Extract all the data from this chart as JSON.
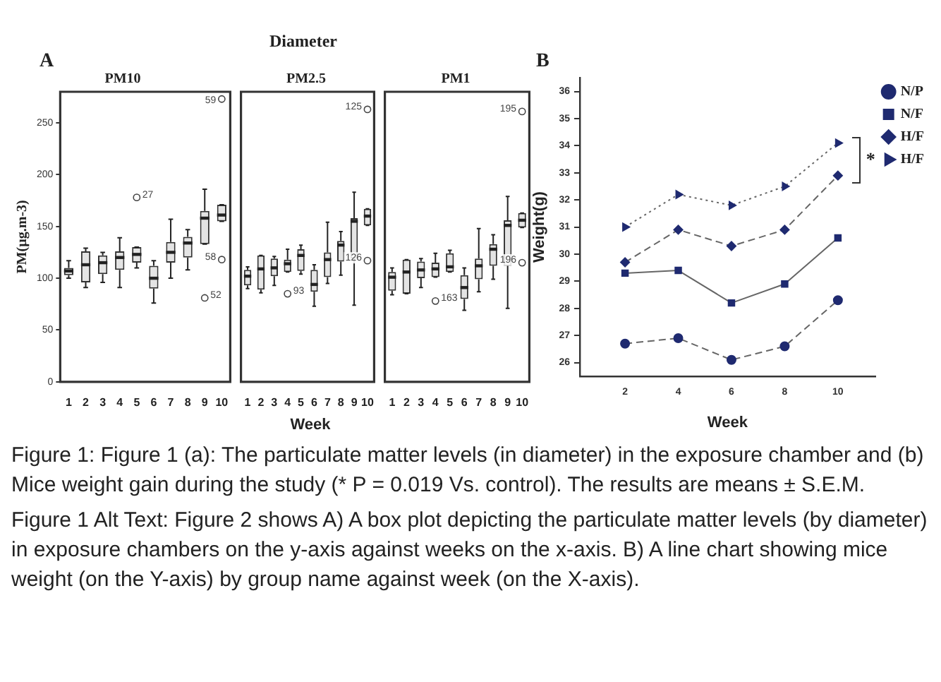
{
  "chart_data": [
    {
      "type": "box",
      "title": "PM10",
      "xlabel": "Week",
      "ylabel": "PM(µg.m-3)",
      "color": "#333333",
      "categories": [
        "1",
        "2",
        "3",
        "4",
        "5",
        "6",
        "7",
        "8",
        "9",
        "10"
      ],
      "ylim": [
        0,
        280
      ],
      "yticks": [
        0,
        50,
        100,
        150,
        200,
        250
      ],
      "boxes": [
        {
          "low": 100,
          "q1": 103,
          "median": 107,
          "q3": 110,
          "high": 117
        },
        {
          "low": 91,
          "q1": 96,
          "median": 113,
          "q3": 126,
          "high": 129
        },
        {
          "low": 96,
          "q1": 104,
          "median": 115,
          "q3": 122,
          "high": 125
        },
        {
          "low": 91,
          "q1": 108,
          "median": 120,
          "q3": 126,
          "high": 139
        },
        {
          "low": 110,
          "q1": 115,
          "median": 123,
          "q3": 130,
          "high": 130,
          "outliers": [
            178
          ]
        },
        {
          "low": 76,
          "q1": 90,
          "median": 100,
          "q3": 112,
          "high": 117
        },
        {
          "low": 100,
          "q1": 115,
          "median": 125,
          "q3": 135,
          "high": 157
        },
        {
          "low": 108,
          "q1": 120,
          "median": 134,
          "q3": 140,
          "high": 147
        },
        {
          "low": 133,
          "q1": 133,
          "median": 158,
          "q3": 165,
          "high": 186,
          "outliers": [
            81
          ]
        },
        {
          "low": 155,
          "q1": 155,
          "median": 161,
          "q3": 171,
          "high": 171,
          "outliers": [
            118,
            273
          ]
        }
      ],
      "annotations": [
        "A",
        "Diameter",
        "27",
        "52",
        "58",
        "59"
      ]
    },
    {
      "type": "box",
      "title": "PM2.5",
      "color": "#333333",
      "categories": [
        "1",
        "2",
        "3",
        "4",
        "5",
        "6",
        "7",
        "8",
        "9",
        "10"
      ],
      "ylim": [
        0,
        280
      ],
      "tick_labels": "x",
      "boxes": [
        {
          "low": 90,
          "q1": 93,
          "median": 102,
          "q3": 108,
          "high": 111
        },
        {
          "low": 86,
          "q1": 89,
          "median": 109,
          "q3": 122,
          "high": 122
        },
        {
          "low": 93,
          "q1": 102,
          "median": 110,
          "q3": 119,
          "high": 121
        },
        {
          "low": 106,
          "q1": 106,
          "median": 114,
          "q3": 118,
          "high": 128,
          "outliers": [
            85
          ]
        },
        {
          "low": 104,
          "q1": 107,
          "median": 122,
          "q3": 128,
          "high": 132
        },
        {
          "low": 73,
          "q1": 87,
          "median": 94,
          "q3": 108,
          "high": 113
        },
        {
          "low": 95,
          "q1": 101,
          "median": 118,
          "q3": 125,
          "high": 154
        },
        {
          "low": 103,
          "q1": 116,
          "median": 132,
          "q3": 136,
          "high": 145
        },
        {
          "low": 74,
          "q1": 119,
          "median": 155,
          "q3": 158,
          "high": 183
        },
        {
          "low": 151,
          "q1": 151,
          "median": 160,
          "q3": 167,
          "high": 167,
          "outliers": [
            117,
            263
          ]
        }
      ],
      "annotations": [
        "93",
        "126",
        "125"
      ]
    },
    {
      "type": "box",
      "title": "PM1",
      "color": "#333333",
      "categories": [
        "1",
        "2",
        "3",
        "4",
        "5",
        "6",
        "7",
        "8",
        "9",
        "10"
      ],
      "ylim": [
        0,
        280
      ],
      "tick_labels": "x",
      "boxes": [
        {
          "low": 84,
          "q1": 88,
          "median": 101,
          "q3": 106,
          "high": 110
        },
        {
          "low": 85,
          "q1": 85,
          "median": 106,
          "q3": 118,
          "high": 118
        },
        {
          "low": 91,
          "q1": 100,
          "median": 108,
          "q3": 116,
          "high": 119
        },
        {
          "low": 101,
          "q1": 101,
          "median": 109,
          "q3": 115,
          "high": 124,
          "outliers": [
            78
          ]
        },
        {
          "low": 106,
          "q1": 106,
          "median": 111,
          "q3": 124,
          "high": 127
        },
        {
          "low": 69,
          "q1": 80,
          "median": 91,
          "q3": 103,
          "high": 110
        },
        {
          "low": 87,
          "q1": 99,
          "median": 112,
          "q3": 119,
          "high": 148
        },
        {
          "low": 99,
          "q1": 112,
          "median": 128,
          "q3": 133,
          "high": 142
        },
        {
          "low": 71,
          "q1": 112,
          "median": 151,
          "q3": 156,
          "high": 179
        },
        {
          "low": 149,
          "q1": 149,
          "median": 156,
          "q3": 163,
          "high": 163,
          "outliers": [
            115,
            261
          ]
        }
      ],
      "annotations": [
        "163",
        "196",
        "195"
      ]
    },
    {
      "type": "line",
      "x": [
        2,
        4,
        6,
        8,
        10
      ],
      "xlim": [
        0.3,
        11.4
      ],
      "xticks": [
        2,
        4,
        6,
        8,
        10
      ],
      "ylim": [
        25.5,
        36.5
      ],
      "yticks": [
        26,
        27,
        28,
        29,
        30,
        31,
        32,
        33,
        34,
        35,
        36
      ],
      "xlabel": "Week",
      "ylabel": "Weight(g)",
      "legend": "top right",
      "series": [
        {
          "name": "N/P",
          "color": "#1f2a70",
          "marker": "circle",
          "line_style": "dashed",
          "values": [
            26.7,
            26.9,
            26.1,
            26.6,
            28.3
          ]
        },
        {
          "name": "N/F",
          "color": "#1f2a70",
          "marker": "square",
          "line_style": "solid",
          "values": [
            29.3,
            29.4,
            28.2,
            28.9,
            30.6
          ]
        },
        {
          "name": "H/F",
          "color": "#1f2a70",
          "marker": "diamond",
          "line_style": "dashed",
          "values": [
            29.7,
            30.9,
            30.3,
            30.9,
            32.9
          ]
        },
        {
          "name": "H/F",
          "color": "#1f2a70",
          "marker": "triangle",
          "line_style": "dotted",
          "values": [
            31.0,
            32.2,
            31.8,
            32.5,
            34.1
          ]
        }
      ],
      "annotations": [
        "B",
        "*"
      ]
    },
    {
      "type": "other",
      "annotations": [
        "Figure 1: Figure 1 (a): The particulate matter levels (in diameter) in the exposure chamber and (b) Mice weight gain during the study (* P = 0.019 Vs. control). The results are means ± S.E.M.",
        "Figure 1 Alt Text: Figure 2 shows A) A box plot depicting the particulate matter levels (by diameter) in exposure chambers on the y-axis against weeks on the x-axis. B) A line chart showing mice weight (on the Y-axis) by group name against week (on the X-axis)."
      ]
    }
  ]
}
